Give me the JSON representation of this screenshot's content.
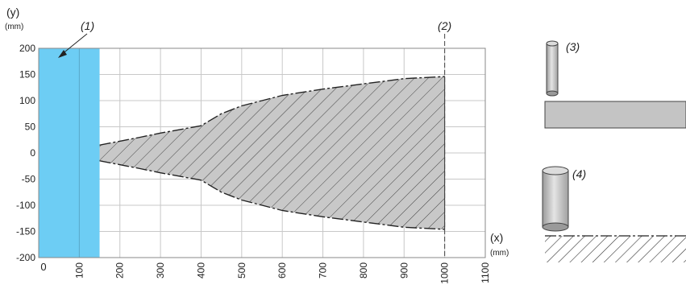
{
  "chart_data": {
    "type": "area",
    "title": "",
    "xlabel": "(x)",
    "xunit": "(mm)",
    "ylabel": "(y)",
    "yunit": "(mm)",
    "xlim": [
      0,
      1100
    ],
    "ylim": [
      -200,
      200
    ],
    "x_ticks": [
      "0",
      "100",
      "200",
      "300",
      "400",
      "500",
      "600",
      "700",
      "800",
      "900",
      "1000",
      "1100"
    ],
    "y_ticks": [
      "200",
      "150",
      "100",
      "50",
      "0",
      "-50",
      "-100",
      "-150",
      "-200"
    ],
    "grid": true,
    "blind_zone": {
      "label": "(1)",
      "x_start": 0,
      "x_end": 150,
      "color": "#6dcdf4"
    },
    "max_range": {
      "label": "(2)",
      "x": 1000
    },
    "detection_zone": {
      "fill": "#c8c8c8",
      "pattern": "hatched",
      "x": [
        150,
        250,
        300,
        400,
        450,
        500,
        600,
        700,
        800,
        900,
        1000
      ],
      "upper": [
        15,
        30,
        38,
        52,
        75,
        90,
        110,
        122,
        132,
        142,
        146
      ],
      "lower": [
        -15,
        -30,
        -38,
        -52,
        -75,
        -90,
        -110,
        -122,
        -132,
        -142,
        -146
      ]
    },
    "annotations": [
      {
        "label": "(3)",
        "target": "small-diameter-rod-over-surface"
      },
      {
        "label": "(4)",
        "target": "large-diameter-rod-over-hatched-surface"
      }
    ]
  }
}
